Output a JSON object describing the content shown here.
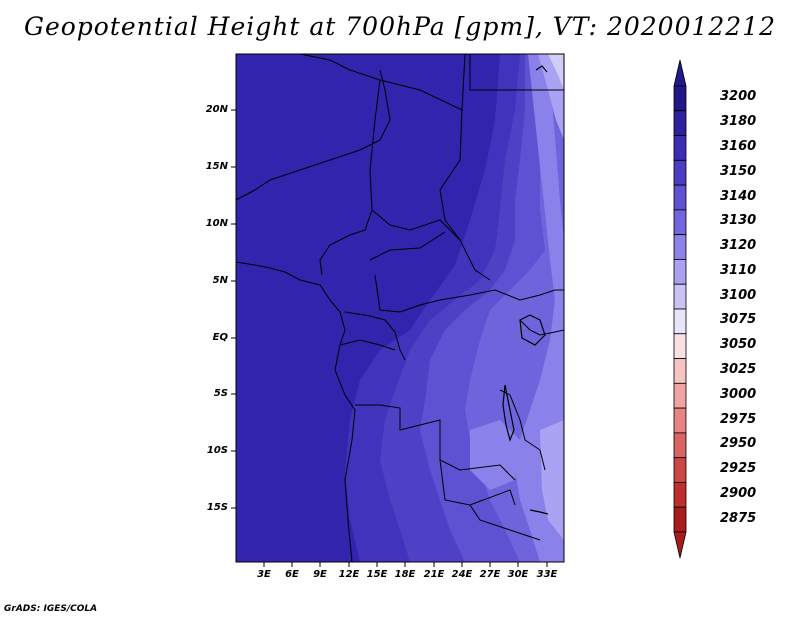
{
  "title": "Geopotential Height at 700hPa [gpm], VT: 2020012212",
  "credit": "GrADS: IGES/COLA",
  "map": {
    "lat_labels": [
      "20N",
      "15N",
      "10N",
      "5N",
      "EQ",
      "5S",
      "10S",
      "15S"
    ],
    "lon_labels": [
      "3E",
      "6E",
      "9E",
      "12E",
      "15E",
      "18E",
      "21E",
      "24E",
      "27E",
      "30E",
      "33E"
    ]
  },
  "colorbar": {
    "levels": [
      "3200",
      "3180",
      "3160",
      "3150",
      "3140",
      "3130",
      "3120",
      "3110",
      "3100",
      "3075",
      "3050",
      "3025",
      "3000",
      "2975",
      "2950",
      "2925",
      "2900",
      "2875"
    ],
    "colors": [
      "#221888",
      "#2e22a0",
      "#3a2eb2",
      "#4a3ec4",
      "#5c52d2",
      "#7266de",
      "#8c82e8",
      "#aaa2f0",
      "#cac4f6",
      "#e8e4fa",
      "#fbe0e0",
      "#f7c4c4",
      "#f0a4a4",
      "#e68484",
      "#da6464",
      "#cc4646",
      "#be2e2e",
      "#a81c1c"
    ]
  },
  "shading_colors": {
    "deep": "#3124ad",
    "mid": "#3d31b9",
    "light1": "#4a3ec4",
    "light2": "#5a50d0",
    "light3": "#6c62dc",
    "light4": "#8a82ea",
    "light5": "#aaa2f2",
    "light6": "#d2ccf8"
  }
}
